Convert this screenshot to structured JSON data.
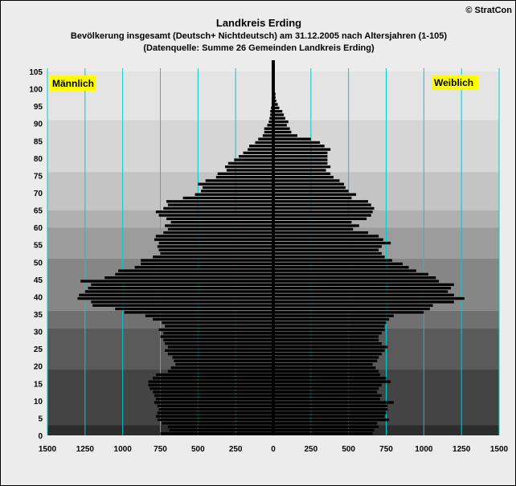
{
  "header": {
    "title": "Landkreis Erding",
    "subtitle1": "Bevölkerung  insgesamt (Deutsch+ Nichtdeutsch) am 31.12.2005 nach Altersjahren (1-105)",
    "subtitle2": "(Datenquelle: Summe 26 Gemeinden Landkreis Erding)",
    "copyright": "© StratCon"
  },
  "colors": {
    "bars": "#000000",
    "gridlines": "#00cccc",
    "label_bg": "#ffff00",
    "male_text": "#000080",
    "female_text": "#ff0000"
  },
  "chart_data": {
    "type": "bar",
    "orientation": "horizontal",
    "subtype": "population-pyramid",
    "legend": {
      "male": "Männlich",
      "female": "Weiblich"
    },
    "x_ticks": [
      "1500",
      "1250",
      "1000",
      "750",
      "500",
      "250",
      "0",
      "250",
      "500",
      "750",
      "1000",
      "1250",
      "1500"
    ],
    "y_ticks": [
      "0",
      "5",
      "10",
      "15",
      "20",
      "25",
      "30",
      "35",
      "40",
      "45",
      "50",
      "55",
      "60",
      "65",
      "70",
      "75",
      "80",
      "85",
      "90",
      "95",
      "100",
      "105"
    ],
    "xlim": [
      -1500,
      1500
    ],
    "ylim": [
      0,
      105
    ],
    "series": [
      {
        "name": "Männlich",
        "ages": [
          1,
          2,
          3,
          4,
          5,
          6,
          7,
          8,
          9,
          10,
          11,
          12,
          13,
          14,
          15,
          16,
          17,
          18,
          19,
          20,
          21,
          22,
          23,
          24,
          25,
          26,
          27,
          28,
          29,
          30,
          31,
          32,
          33,
          34,
          35,
          36,
          37,
          38,
          39,
          40,
          41,
          42,
          43,
          44,
          45,
          46,
          47,
          48,
          49,
          50,
          51,
          52,
          53,
          54,
          55,
          56,
          57,
          58,
          59,
          60,
          61,
          62,
          63,
          64,
          65,
          66,
          67,
          68,
          69,
          70,
          71,
          72,
          73,
          74,
          75,
          76,
          77,
          78,
          79,
          80,
          81,
          82,
          83,
          84,
          85,
          86,
          87,
          88,
          89,
          90,
          91,
          92,
          93,
          94,
          95,
          96,
          97,
          98,
          99,
          100,
          101,
          102,
          103,
          104,
          105
        ],
        "values": [
          750,
          690,
          700,
          740,
          770,
          780,
          770,
          760,
          770,
          790,
          780,
          790,
          800,
          820,
          830,
          830,
          800,
          780,
          700,
          680,
          650,
          660,
          670,
          700,
          720,
          700,
          720,
          730,
          750,
          730,
          760,
          720,
          740,
          800,
          850,
          990,
          1050,
          1200,
          1210,
          1300,
          1290,
          1250,
          1230,
          1210,
          1280,
          1120,
          1050,
          1030,
          920,
          880,
          880,
          800,
          750,
          760,
          770,
          760,
          790,
          780,
          730,
          700,
          720,
          680,
          710,
          760,
          780,
          730,
          700,
          710,
          600,
          520,
          480,
          470,
          500,
          450,
          380,
          370,
          310,
          320,
          300,
          260,
          230,
          200,
          170,
          160,
          120,
          100,
          70,
          60,
          60,
          40,
          30,
          25,
          20,
          20,
          15,
          10,
          10,
          8,
          6,
          5,
          4,
          3,
          2,
          2,
          1
        ]
      },
      {
        "name": "Weiblich",
        "ages": [
          1,
          2,
          3,
          4,
          5,
          6,
          7,
          8,
          9,
          10,
          11,
          12,
          13,
          14,
          15,
          16,
          17,
          18,
          19,
          20,
          21,
          22,
          23,
          24,
          25,
          26,
          27,
          28,
          29,
          30,
          31,
          32,
          33,
          34,
          35,
          36,
          37,
          38,
          39,
          40,
          41,
          42,
          43,
          44,
          45,
          46,
          47,
          48,
          49,
          50,
          51,
          52,
          53,
          54,
          55,
          56,
          57,
          58,
          59,
          60,
          61,
          62,
          63,
          64,
          65,
          66,
          67,
          68,
          69,
          70,
          71,
          72,
          73,
          74,
          75,
          76,
          77,
          78,
          79,
          80,
          81,
          82,
          83,
          84,
          85,
          86,
          87,
          88,
          89,
          90,
          91,
          92,
          93,
          94,
          95,
          96,
          97,
          98,
          99,
          100,
          101,
          102,
          103,
          104,
          105
        ],
        "values": [
          660,
          670,
          700,
          690,
          770,
          740,
          750,
          760,
          760,
          800,
          710,
          720,
          690,
          700,
          720,
          780,
          750,
          710,
          700,
          680,
          660,
          690,
          700,
          720,
          740,
          760,
          720,
          700,
          700,
          720,
          740,
          740,
          750,
          770,
          800,
          1000,
          1040,
          1060,
          1200,
          1270,
          1200,
          1160,
          1180,
          1200,
          1100,
          1080,
          1030,
          950,
          900,
          860,
          790,
          740,
          720,
          700,
          720,
          780,
          730,
          700,
          630,
          530,
          570,
          520,
          620,
          650,
          660,
          670,
          650,
          630,
          520,
          550,
          500,
          480,
          470,
          440,
          400,
          380,
          350,
          380,
          360,
          360,
          360,
          360,
          380,
          340,
          310,
          250,
          160,
          120,
          110,
          90,
          100,
          80,
          70,
          60,
          40,
          30,
          20,
          15,
          15,
          10,
          8,
          5,
          3,
          2,
          1
        ]
      }
    ]
  }
}
